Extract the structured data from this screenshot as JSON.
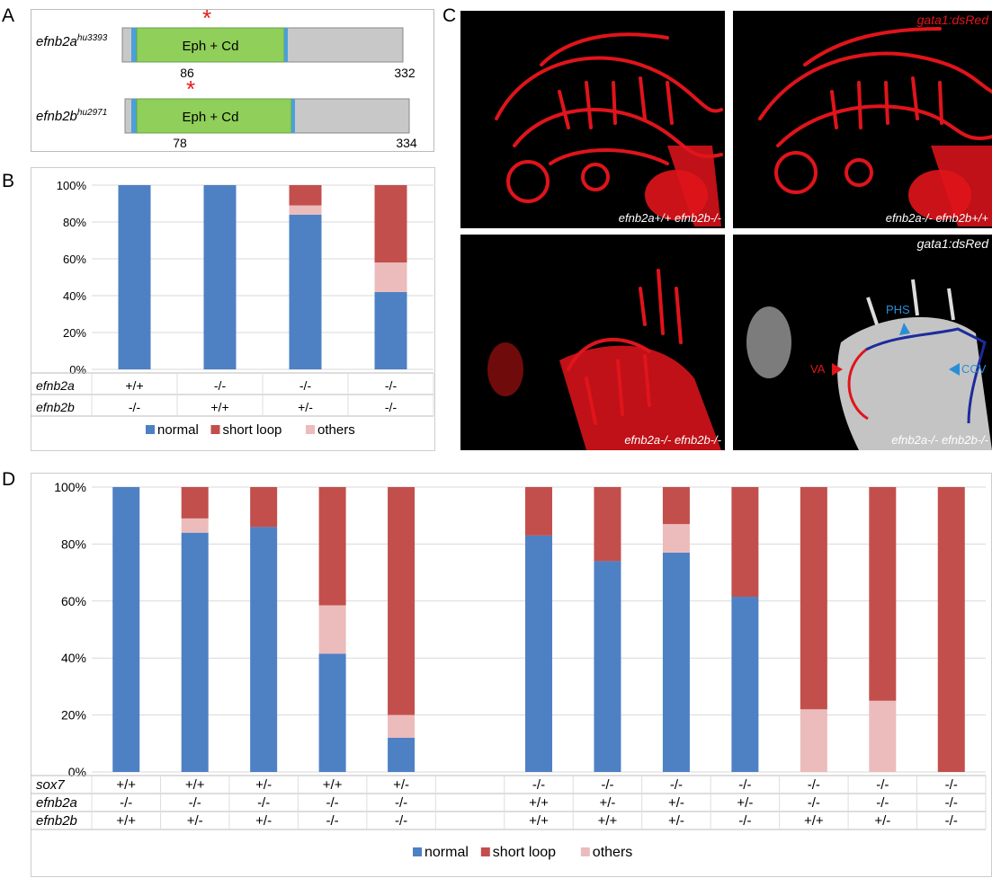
{
  "panel_letters": {
    "a": "A",
    "b": "B",
    "c": "C",
    "d": "D"
  },
  "panel_a": {
    "constructs": [
      {
        "gene": "efnb2a",
        "allele": "hu3393",
        "domain": "Eph + Cd",
        "mutation_pos": "86",
        "length": "332",
        "asterisk": "*"
      },
      {
        "gene": "efnb2b",
        "allele": "hu2971",
        "domain": "Eph + Cd",
        "mutation_pos": "78",
        "length": "334",
        "asterisk": "*"
      }
    ],
    "colors": {
      "protein": "#c8c8c8",
      "domain": "#8fcf5a",
      "flank": "#4aa0d8",
      "asterisk": "#e8191e"
    }
  },
  "legend": {
    "normal": "normal",
    "short_loop": "short loop",
    "others": "others"
  },
  "colors": {
    "normal": "#4e80c4",
    "short_loop": "#c24f4c",
    "others": "#ebbcbb"
  },
  "chart_data": [
    {
      "type": "bar",
      "stacked": true,
      "panel": "B",
      "yticks": [
        "0%",
        "20%",
        "40%",
        "60%",
        "80%",
        "100%"
      ],
      "ylim": [
        0,
        100
      ],
      "genotype_rows": [
        {
          "label": "efnb2a",
          "values": [
            "+/+",
            "-/-",
            "-/-",
            "-/-"
          ]
        },
        {
          "label": "efnb2b",
          "values": [
            "-/-",
            "+/+",
            "+/-",
            "-/-"
          ]
        }
      ],
      "series": [
        {
          "name": "normal",
          "values": [
            100,
            100,
            84,
            42
          ]
        },
        {
          "name": "others",
          "values": [
            0,
            0,
            5,
            16
          ]
        },
        {
          "name": "short loop",
          "values": [
            0,
            0,
            11,
            42
          ]
        }
      ],
      "legend_position": "bottom"
    },
    {
      "type": "bar",
      "stacked": true,
      "panel": "D",
      "yticks": [
        "0%",
        "20%",
        "40%",
        "60%",
        "80%",
        "100%"
      ],
      "ylim": [
        0,
        100
      ],
      "genotype_rows": [
        {
          "label": "sox7",
          "values": [
            "+/+",
            "+/+",
            "+/-",
            "+/+",
            "+/-",
            "",
            "-/-",
            "-/-",
            "-/-",
            "-/-",
            "-/-",
            "-/-",
            "-/-"
          ]
        },
        {
          "label": "efnb2a",
          "values": [
            "-/-",
            "-/-",
            "-/-",
            "-/-",
            "-/-",
            "",
            "+/+",
            "+/-",
            "+/-",
            "+/-",
            "-/-",
            "-/-",
            "-/-"
          ]
        },
        {
          "label": "efnb2b",
          "values": [
            "+/+",
            "+/-",
            "+/-",
            "-/-",
            "-/-",
            "",
            "+/+",
            "+/+",
            "+/-",
            "-/-",
            "+/+",
            "+/-",
            "-/-"
          ]
        }
      ],
      "series": [
        {
          "name": "normal",
          "values": [
            100,
            84,
            86,
            41.5,
            12,
            null,
            83,
            74,
            77,
            61.5,
            0,
            0,
            0
          ]
        },
        {
          "name": "others",
          "values": [
            0,
            5,
            0,
            17,
            8,
            null,
            0,
            0,
            10,
            0,
            22,
            25,
            0
          ]
        },
        {
          "name": "short loop",
          "values": [
            0,
            11,
            14,
            41.5,
            80,
            null,
            17,
            26,
            13,
            38.5,
            78,
            75,
            100
          ]
        }
      ],
      "legend_position": "bottom"
    }
  ],
  "panel_c": {
    "tags": {
      "top_right": "gata1:dsRed",
      "bottom_right": "gata1:dsRed"
    },
    "labels": {
      "top_left": "efnb2a+/+ efnb2b-/-",
      "top_right": "efnb2a-/- efnb2b+/+",
      "bottom_left": "efnb2a-/- efnb2b-/-",
      "bottom_right": "efnb2a-/- efnb2b-/-"
    },
    "annotations": {
      "phs": "PHS",
      "va": "VA",
      "ccv": "CCV"
    },
    "colors": {
      "vessel": "#e0141b",
      "annot_blue": "#2a8ed6",
      "annot_red": "#e0141b"
    }
  }
}
